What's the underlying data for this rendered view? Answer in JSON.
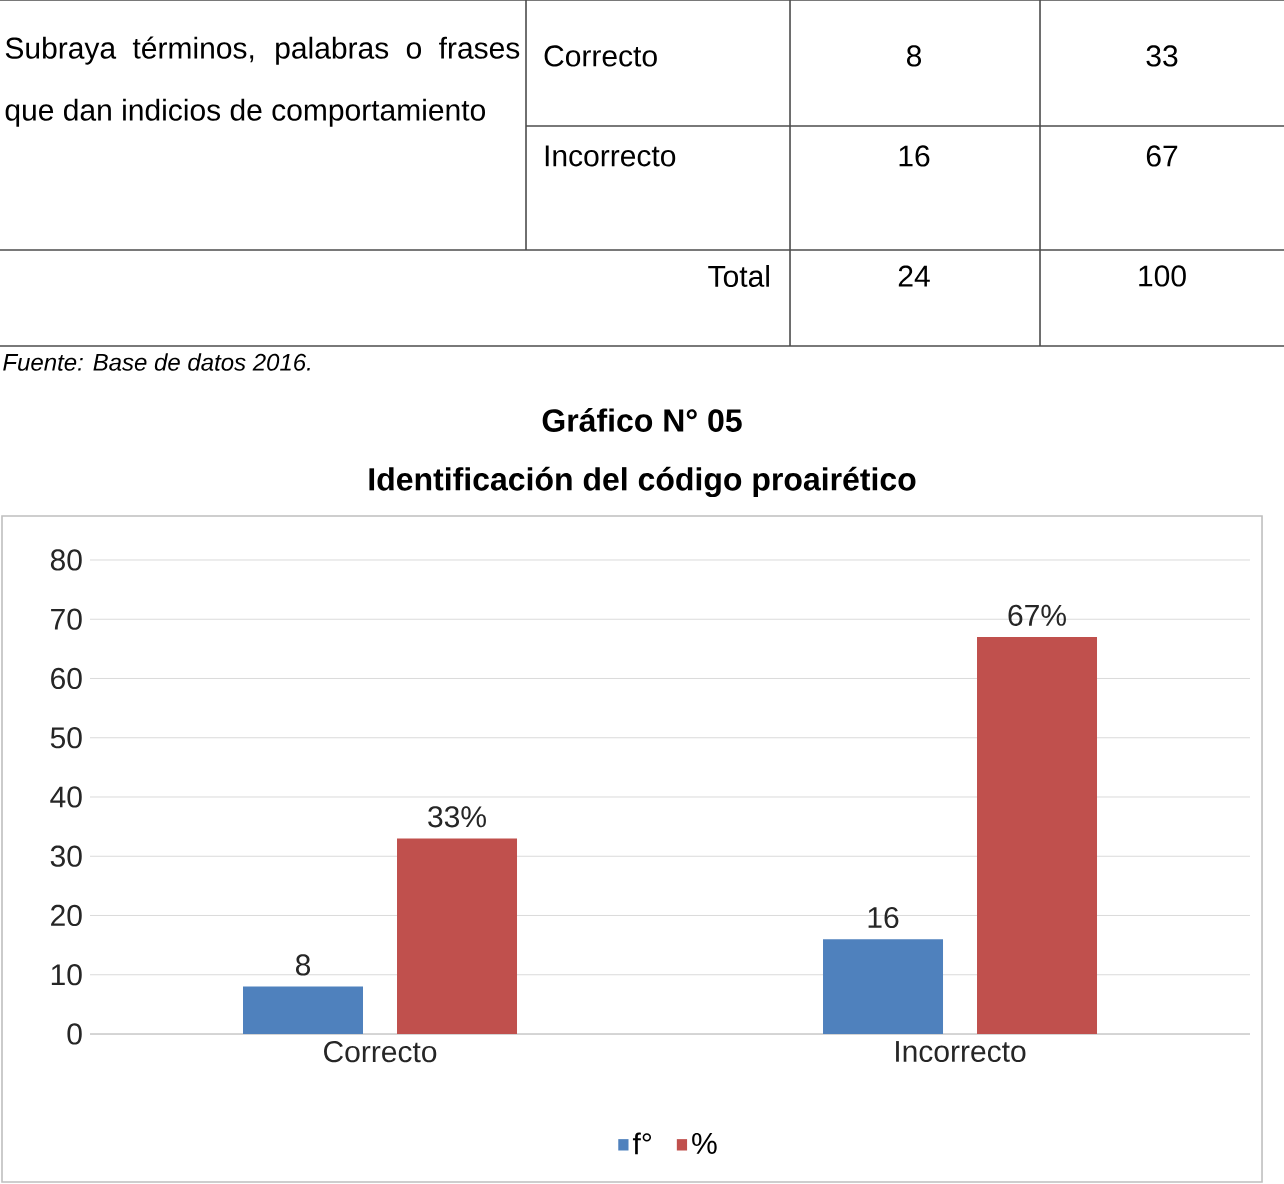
{
  "chart_data": {
    "type": "bar",
    "title": "Gráfico N° 05",
    "subtitle": "Identificación del código proairético",
    "categories": [
      "Correcto",
      "Incorrecto"
    ],
    "series": [
      {
        "name": "f°",
        "color": "#4f81bd",
        "values": [
          8,
          16
        ],
        "value_labels": [
          "8",
          "16"
        ]
      },
      {
        "name": "%",
        "color": "#c0504d",
        "values": [
          33,
          67
        ],
        "value_labels": [
          "33%",
          "67%"
        ]
      }
    ],
    "ylim": [
      0,
      80
    ],
    "yticks": [
      0,
      10,
      20,
      30,
      40,
      50,
      60,
      70,
      80
    ],
    "grid": "y",
    "legend": "bottom",
    "annotations": [
      "Subraya términos, palabras o frases que dan indicios de comportamiento",
      "Correcto",
      "8",
      "33",
      "Incorrecto",
      "16",
      "67",
      "Total",
      "24",
      "100",
      "Fuente: Base de datos 2016."
    ]
  }
}
